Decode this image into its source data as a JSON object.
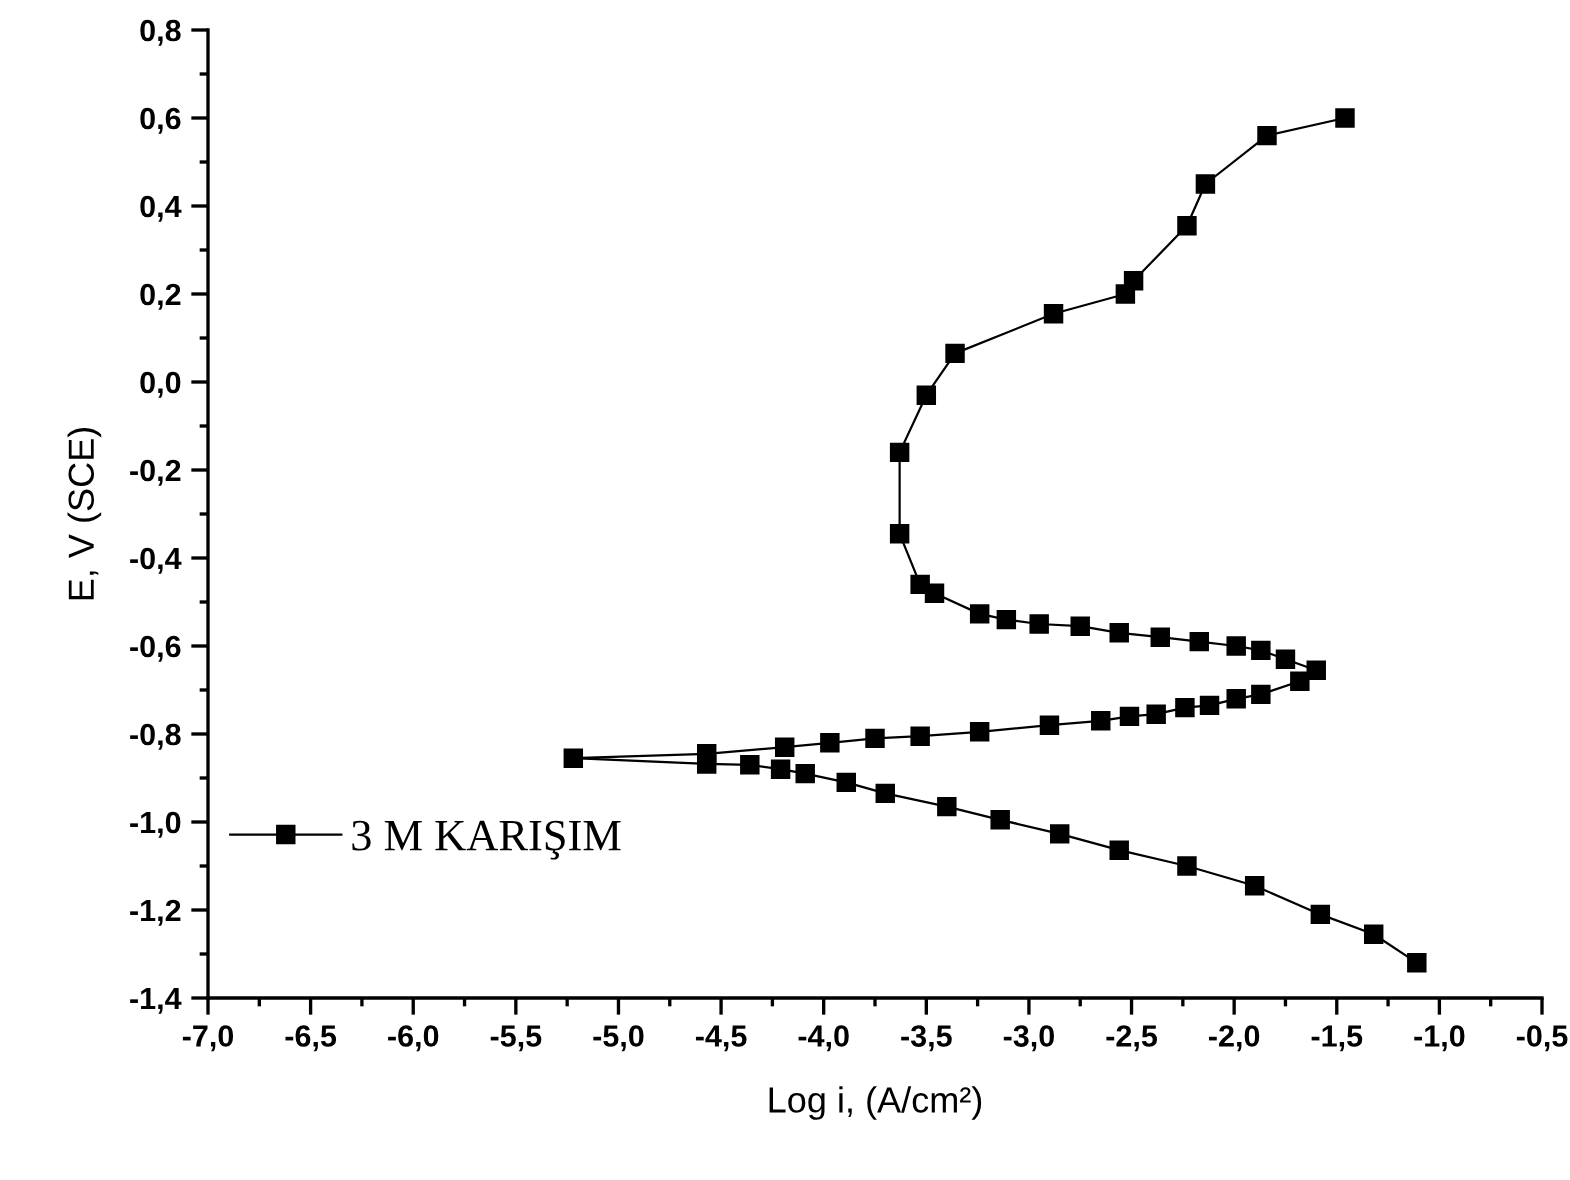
{
  "chart_data": {
    "type": "line",
    "xlabel": "Log i, (A/cm²)",
    "ylabel": "E, V (SCE)",
    "x": [
      -1.46,
      -1.84,
      -2.14,
      -2.23,
      -2.49,
      -2.53,
      -2.88,
      -3.36,
      -3.5,
      -3.63,
      -3.63,
      -3.53,
      -3.46,
      -3.24,
      -3.11,
      -2.95,
      -2.75,
      -2.56,
      -2.36,
      -2.17,
      -1.99,
      -1.87,
      -1.75,
      -1.6,
      -1.68,
      -1.87,
      -1.99,
      -2.12,
      -2.24,
      -2.38,
      -2.51,
      -2.65,
      -2.9,
      -3.24,
      -3.53,
      -3.75,
      -3.97,
      -4.19,
      -4.57,
      -5.22,
      -4.57,
      -4.36,
      -4.21,
      -4.09,
      -3.89,
      -3.7,
      -3.4,
      -3.14,
      -2.85,
      -2.56,
      -2.23,
      -1.9,
      -1.58,
      -1.32,
      -1.11
    ],
    "series": [
      {
        "name": "3 M KARIŞIM",
        "color": "#000000",
        "values": [
          0.6,
          0.56,
          0.45,
          0.355,
          0.23,
          0.2,
          0.155,
          0.065,
          -0.03,
          -0.16,
          -0.345,
          -0.46,
          -0.48,
          -0.527,
          -0.54,
          -0.55,
          -0.555,
          -0.57,
          -0.58,
          -0.59,
          -0.6,
          -0.61,
          -0.63,
          -0.655,
          -0.68,
          -0.71,
          -0.72,
          -0.735,
          -0.74,
          -0.755,
          -0.76,
          -0.77,
          -0.78,
          -0.795,
          -0.805,
          -0.81,
          -0.82,
          -0.83,
          -0.845,
          -0.855,
          -0.868,
          -0.87,
          -0.88,
          -0.89,
          -0.91,
          -0.935,
          -0.965,
          -0.995,
          -1.027,
          -1.064,
          -1.1,
          -1.145,
          -1.21,
          -1.255,
          -1.32
        ]
      }
    ],
    "xlim": [
      -7.0,
      -0.5
    ],
    "xticks": [
      {
        "value": -7.0,
        "label": "-7,0"
      },
      {
        "value": -6.5,
        "label": "-6,5"
      },
      {
        "value": -6.0,
        "label": "-6,0"
      },
      {
        "value": -5.5,
        "label": "-5,5"
      },
      {
        "value": -5.0,
        "label": "-5,0"
      },
      {
        "value": -4.5,
        "label": "-4,5"
      },
      {
        "value": -4.0,
        "label": "-4,0"
      },
      {
        "value": -3.5,
        "label": "-3,5"
      },
      {
        "value": -3.0,
        "label": "-3,0"
      },
      {
        "value": -2.5,
        "label": "-2,5"
      },
      {
        "value": -2.0,
        "label": "-2,0"
      },
      {
        "value": -1.5,
        "label": "-1,5"
      },
      {
        "value": -1.0,
        "label": "-1,0"
      },
      {
        "value": -0.5,
        "label": "-0,5"
      }
    ],
    "ylim": [
      -1.4,
      0.8
    ],
    "yticks": [
      {
        "value": -1.4,
        "label": "-1,4"
      },
      {
        "value": -1.2,
        "label": "-1,2"
      },
      {
        "value": -1.0,
        "label": "-1,0"
      },
      {
        "value": -0.8,
        "label": "-0,8"
      },
      {
        "value": -0.6,
        "label": "-0,6"
      },
      {
        "value": -0.4,
        "label": "-0,4"
      },
      {
        "value": -0.2,
        "label": "-0,2"
      },
      {
        "value": 0.0,
        "label": "0,0"
      },
      {
        "value": 0.2,
        "label": "0,2"
      },
      {
        "value": 0.4,
        "label": "0,4"
      },
      {
        "value": 0.6,
        "label": "0,6"
      },
      {
        "value": 0.8,
        "label": "0,8"
      }
    ],
    "marker": "square",
    "line_style": "solid",
    "grid": false,
    "legend": "bottom left"
  }
}
